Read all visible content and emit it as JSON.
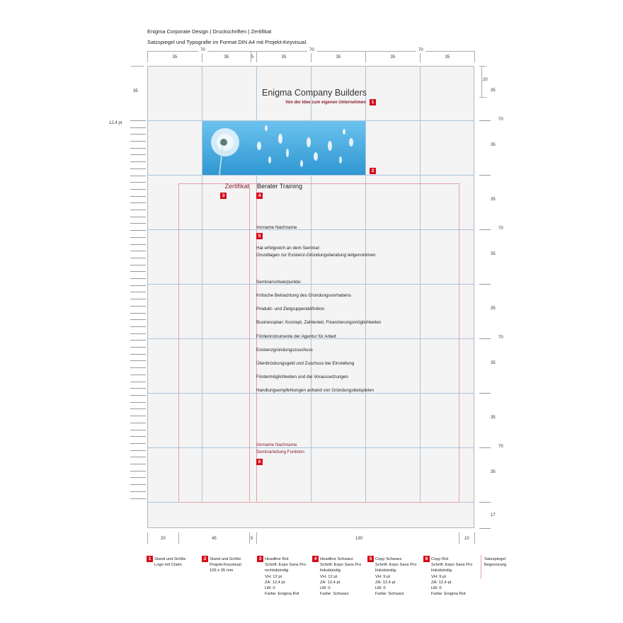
{
  "header": {
    "title": "Enigma Corporate Design | Druckschriften | Zertifikat",
    "subtitle": "Satzspiegel und Typografie im Format DIN A4 mit Projekt-Keyvisual."
  },
  "top_dims": {
    "groups": [
      "70",
      "70",
      "70"
    ],
    "columns": [
      "35",
      "35",
      "5",
      "35",
      "35",
      "35",
      "35"
    ]
  },
  "left_dims": {
    "top": "35",
    "leading": "12,4 pt"
  },
  "right_dims": [
    "20",
    "35",
    "70",
    "35",
    "35",
    "70",
    "35",
    "35",
    "70",
    "35",
    "35",
    "70",
    "35",
    "17"
  ],
  "bottom_dims": [
    "20",
    "45",
    "5",
    "130",
    "10"
  ],
  "document": {
    "company": "Enigma Company Builders",
    "claim": "Von der Idee zum eigenen Unternehmen",
    "headline_red": "Zertifikat",
    "headline_black": "Berater Training",
    "name": "Vorname Nachname",
    "intro_1": "Hat erfolgreich an dem Seminar:",
    "intro_2": "Grundlagen zur Existenz-Gründungsberatung teilgenommen.",
    "topics_heading": "Seminarschwerpunkte:",
    "topics": [
      "Kritische Betrachtung des Gründungsvorhabens",
      "Produkt- und Zielgruppendefinition",
      "Businessplan: Konzept, Zahlenteil, Finanzierungsmöglichkeiten",
      "Förderinstrumente der Agentur für Arbeit",
      "Existenzgründungszuschuss",
      "Überbrückungsgeld und Zuschuss bei Einstellung",
      "Fördermöglichkeiten und die Voraussetzungen",
      "Handlungsempfehlungen anhand von Gründungsbeispielen"
    ],
    "signer_name": "Vorname Nachname",
    "signer_role": "Seminarleitung Funktion"
  },
  "badges": [
    "1",
    "2",
    "3",
    "4",
    "5",
    "6"
  ],
  "legend": [
    {
      "num": "1",
      "lines": [
        "Stand und Größe",
        "Logo mit Claim"
      ]
    },
    {
      "num": "2",
      "lines": [
        "Stand und Größe",
        "Projekt-Keyvisual",
        "105 x 35 mm"
      ]
    },
    {
      "num": "3",
      "lines": [
        "Headline Rot",
        "Schrift: Expo Sans Pro",
        "rechtsbündig",
        "VH: 12 pt",
        "ZA: 12,4 pt",
        "LW: 0",
        "Farbe: Enigma Rot"
      ]
    },
    {
      "num": "4",
      "lines": [
        "Headline Schwarz",
        "Schrift: Expo Sans Pro",
        "linksbündig",
        "VH: 12 pt",
        "ZA: 12,4 pt",
        "LW: 0",
        "Farbe: Schwarz"
      ]
    },
    {
      "num": "5",
      "lines": [
        "Copy Schwarz",
        "Schrift: Expo Sans Pro",
        "linksbündig",
        "VH: 9 pt",
        "ZA: 12,4 pt",
        "LW: 0",
        "Farbe: Schwarz"
      ]
    },
    {
      "num": "6",
      "lines": [
        "Copy Rot",
        "Schrift: Expo Sans Pro",
        "linksbündig",
        "VH: 9 pt",
        "ZA: 12,4 pt",
        "LW: 0",
        "Farbe: Enigma Rot"
      ]
    }
  ],
  "legend_satzspiegel": [
    "Satzspiegel",
    "Begrenzung"
  ],
  "colors": {
    "enigma_red": "#8a1f35",
    "badge_red": "#d50d1c",
    "grid_blue": "#a9c6de",
    "type_area_red": "#e8a0a8",
    "keyvisual_blue": "#3aa3d8"
  }
}
